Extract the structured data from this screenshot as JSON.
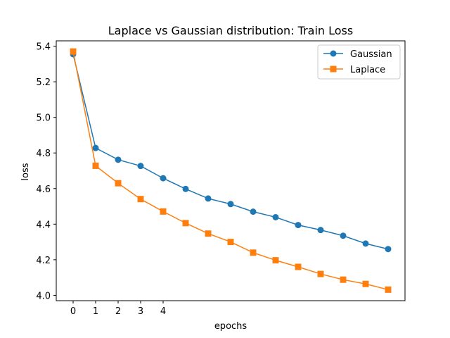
{
  "chart_data": {
    "type": "line",
    "title": "Laplace vs Gaussian distribution: Train Loss",
    "xlabel": "epochs",
    "ylabel": "loss",
    "x": [
      0,
      1,
      2,
      3,
      4,
      5,
      6,
      7,
      8,
      9,
      10,
      11,
      12,
      13,
      14
    ],
    "x_tick_labels": [
      "0",
      "1",
      "2",
      "3",
      "4"
    ],
    "x_tick_values": [
      0,
      1,
      2,
      3,
      4
    ],
    "xlim": [
      -0.75,
      14.75
    ],
    "ylim": [
      3.97,
      5.43
    ],
    "y_ticks": [
      "4.0",
      "4.2",
      "4.4",
      "4.6",
      "4.8",
      "5.0",
      "5.2",
      "5.4"
    ],
    "legend_position": "top-right",
    "grid": false,
    "series": [
      {
        "name": "Gaussian",
        "color": "#1f77b4",
        "marker": "circle",
        "values": [
          5.355,
          4.828,
          4.762,
          4.727,
          4.658,
          4.598,
          4.544,
          4.513,
          4.47,
          4.439,
          4.395,
          4.367,
          4.335,
          4.291,
          4.26
        ]
      },
      {
        "name": "Laplace",
        "color": "#ff7f0e",
        "marker": "square",
        "values": [
          5.37,
          4.728,
          4.63,
          4.541,
          4.471,
          4.406,
          4.347,
          4.3,
          4.24,
          4.197,
          4.16,
          4.12,
          4.088,
          4.064,
          4.032
        ]
      }
    ]
  }
}
